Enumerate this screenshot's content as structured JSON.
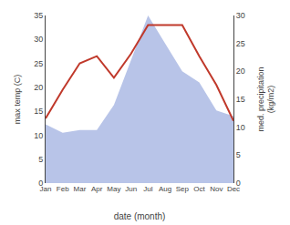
{
  "chart_data": {
    "type": "line",
    "categories": [
      "Jan",
      "Feb",
      "Mar",
      "Apr",
      "May",
      "Jun",
      "Jul",
      "Aug",
      "Sep",
      "Oct",
      "Nov",
      "Dec"
    ],
    "series": [
      {
        "type": "area",
        "axis": "y2",
        "color": "#b8c4e8",
        "values": [
          10.5,
          9.0,
          9.5,
          9.5,
          14.0,
          22.0,
          30.0,
          25.0,
          20.0,
          18.0,
          13.0,
          12.0
        ]
      },
      {
        "type": "line",
        "color": "#c0392b",
        "values": [
          13.5,
          19.5,
          25.0,
          26.5,
          22.0,
          27.0,
          33.0,
          33.0,
          33.0,
          26.5,
          20.5,
          13.0
        ]
      }
    ],
    "xlabel": "date (month)",
    "ylabel": "max temp (C)",
    "y2label": "med. precipitation\n(kg/m2)",
    "ylim": [
      0,
      35
    ],
    "yticks": [
      0,
      5,
      10,
      15,
      20,
      25,
      30,
      35
    ],
    "y2lim": [
      0,
      30
    ],
    "y2ticks": [
      0,
      5,
      10,
      15,
      20,
      25,
      30
    ],
    "grid": false
  }
}
